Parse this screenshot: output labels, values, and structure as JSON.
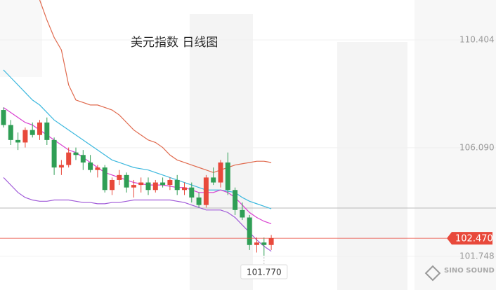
{
  "chart_data": {
    "type": "candlestick",
    "title": "美元指数  日线图",
    "ylim": [
      100.4,
      112.0
    ],
    "yticks": [
      110.404,
      {
        "value": 106.09,
        "label": "106.090"
      },
      101.748
    ],
    "up_color": "#e8493b",
    "down_color": "#2f9e55",
    "open": [
      107.6,
      107.0,
      106.4,
      106.3,
      106.8,
      106.6,
      107.1,
      106.4,
      105.3,
      105.4,
      105.9,
      105.8,
      105.5,
      105.2,
      105.3,
      104.4,
      104.8,
      105.0,
      104.5,
      104.6,
      104.7,
      104.4,
      104.7,
      104.6,
      104.8,
      104.4,
      104.5,
      104.1,
      103.8,
      104.9,
      104.7,
      105.5,
      104.4,
      103.6,
      103.3,
      102.2,
      102.3,
      102.2
    ],
    "high": [
      107.7,
      107.2,
      106.7,
      106.9,
      107.1,
      107.2,
      107.3,
      106.5,
      105.6,
      106.1,
      106.1,
      106.0,
      105.8,
      105.4,
      105.4,
      104.9,
      105.2,
      105.1,
      104.8,
      104.9,
      104.9,
      104.8,
      104.9,
      104.9,
      105.0,
      104.7,
      104.7,
      104.3,
      105.0,
      105.3,
      105.6,
      105.9,
      104.5,
      103.9,
      103.4,
      102.5,
      102.5,
      102.6
    ],
    "low": [
      106.9,
      106.2,
      106.0,
      106.1,
      106.5,
      106.4,
      106.2,
      105.0,
      105.0,
      105.3,
      105.6,
      105.2,
      105.1,
      104.9,
      104.3,
      104.2,
      104.6,
      104.3,
      104.1,
      104.3,
      104.2,
      104.3,
      104.5,
      104.4,
      104.2,
      104.2,
      103.9,
      103.7,
      103.7,
      104.6,
      104.5,
      104.2,
      103.4,
      103.2,
      102.0,
      101.9,
      101.77,
      102.0
    ],
    "close": [
      107.0,
      106.4,
      106.3,
      106.8,
      106.6,
      107.1,
      106.4,
      105.3,
      105.4,
      105.9,
      105.8,
      105.5,
      105.2,
      105.3,
      104.4,
      104.8,
      105.0,
      104.5,
      104.6,
      104.7,
      104.4,
      104.7,
      104.6,
      104.8,
      104.4,
      104.5,
      104.1,
      103.8,
      104.9,
      104.7,
      105.5,
      104.4,
      103.6,
      103.3,
      102.2,
      102.3,
      102.2,
      102.47
    ],
    "series": [
      {
        "color": "#e06a4e",
        "values": [
          null,
          null,
          null,
          null,
          null,
          112.0,
          111.2,
          110.5,
          110.0,
          108.6,
          108.0,
          107.9,
          107.8,
          107.8,
          107.7,
          107.6,
          107.4,
          107.1,
          106.8,
          106.6,
          106.4,
          106.3,
          106.1,
          105.8,
          105.6,
          105.5,
          105.4,
          105.3,
          105.2,
          105.1,
          105.2,
          105.3,
          105.4,
          105.45,
          105.5,
          105.55,
          105.55,
          105.5
        ]
      },
      {
        "color": "#3cb8de",
        "values": [
          109.2,
          108.9,
          108.6,
          108.3,
          108.0,
          107.8,
          107.5,
          107.2,
          107.0,
          106.8,
          106.6,
          106.4,
          106.2,
          106.0,
          105.8,
          105.6,
          105.5,
          105.4,
          105.3,
          105.25,
          105.2,
          105.1,
          105.0,
          104.9,
          104.8,
          104.7,
          104.6,
          104.5,
          104.4,
          104.4,
          104.4,
          104.35,
          104.3,
          104.1,
          103.95,
          103.85,
          103.75,
          103.65
        ]
      },
      {
        "color": "#d93fd0",
        "values": [
          107.7,
          107.5,
          107.3,
          107.1,
          107.0,
          106.8,
          106.6,
          106.4,
          106.2,
          106.0,
          105.9,
          105.7,
          105.5,
          105.3,
          105.1,
          105.0,
          104.9,
          104.8,
          104.7,
          104.65,
          104.6,
          104.6,
          104.6,
          104.55,
          104.5,
          104.5,
          104.4,
          104.3,
          104.3,
          104.3,
          104.4,
          104.3,
          104.1,
          103.8,
          103.5,
          103.3,
          103.15,
          103.05
        ]
      },
      {
        "color": "#a05ad8",
        "values": [
          104.9,
          104.6,
          104.3,
          104.1,
          104.0,
          103.95,
          103.95,
          104.0,
          104.0,
          104.0,
          103.95,
          103.9,
          103.9,
          103.85,
          103.85,
          103.9,
          103.9,
          103.95,
          104.0,
          104.0,
          104.0,
          104.0,
          104.0,
          104.0,
          103.95,
          103.9,
          103.8,
          103.7,
          103.6,
          103.6,
          103.6,
          103.5,
          103.3,
          103.0,
          102.7,
          102.4,
          102.15,
          101.95
        ]
      }
    ],
    "last_price": {
      "value": 102.47,
      "label": "102.470",
      "color": "#e8493b"
    },
    "low_marker": {
      "value": 101.77,
      "label": "101.770",
      "index": 36
    },
    "watermark": "SINO SOUND"
  }
}
